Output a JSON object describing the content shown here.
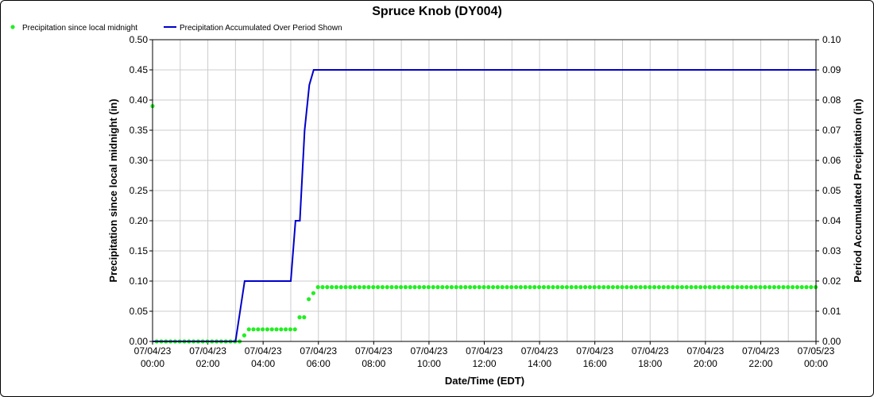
{
  "chart_data": {
    "type": "line",
    "title": "Spruce Knob (DY004)",
    "xlabel": "Date/Time (EDT)",
    "ylabel_left": "Precipitation since local midnight (in)",
    "ylabel_right": "Period Accumulated Precipitation (in)",
    "ylim_left": [
      0,
      0.5
    ],
    "ylim_right": [
      0,
      0.1
    ],
    "grid": true,
    "legend_position": "top-left",
    "x_range_hours": [
      0,
      24
    ],
    "x_ticks": [
      {
        "date": "07/04/23",
        "time": "00:00"
      },
      {
        "date": "07/04/23",
        "time": "02:00"
      },
      {
        "date": "07/04/23",
        "time": "04:00"
      },
      {
        "date": "07/04/23",
        "time": "06:00"
      },
      {
        "date": "07/04/23",
        "time": "08:00"
      },
      {
        "date": "07/04/23",
        "time": "10:00"
      },
      {
        "date": "07/04/23",
        "time": "12:00"
      },
      {
        "date": "07/04/23",
        "time": "14:00"
      },
      {
        "date": "07/04/23",
        "time": "16:00"
      },
      {
        "date": "07/04/23",
        "time": "18:00"
      },
      {
        "date": "07/04/23",
        "time": "20:00"
      },
      {
        "date": "07/04/23",
        "time": "22:00"
      },
      {
        "date": "07/05/23",
        "time": "00:00"
      }
    ],
    "y_ticks_left": [
      "0.00",
      "0.05",
      "0.10",
      "0.15",
      "0.20",
      "0.25",
      "0.30",
      "0.35",
      "0.40",
      "0.45",
      "0.50"
    ],
    "y_ticks_right": [
      "0.00",
      "0.01",
      "0.02",
      "0.03",
      "0.04",
      "0.05",
      "0.06",
      "0.07",
      "0.08",
      "0.09",
      "0.10"
    ],
    "series": [
      {
        "name": "Precipitation since local midnight",
        "axis": "left",
        "style": "points",
        "color": "#22ee22",
        "points": [
          [
            0.0,
            0.39
          ],
          [
            0.15,
            0.0
          ],
          [
            3.0,
            0.0
          ],
          [
            3.17,
            0.01
          ],
          [
            3.33,
            0.02
          ],
          [
            5.0,
            0.02
          ],
          [
            5.17,
            0.04
          ],
          [
            5.33,
            0.04
          ],
          [
            5.5,
            0.07
          ],
          [
            5.67,
            0.08
          ],
          [
            5.83,
            0.09
          ],
          [
            24.0,
            0.09
          ]
        ],
        "interval_hours": 0.1667
      },
      {
        "name": "Precipitation Accumulated Over Period Shown",
        "axis": "right",
        "style": "line",
        "color": "#0000cc",
        "points": [
          [
            0.0,
            0.0
          ],
          [
            3.0,
            0.0
          ],
          [
            3.33,
            0.02
          ],
          [
            5.0,
            0.02
          ],
          [
            5.17,
            0.04
          ],
          [
            5.33,
            0.04
          ],
          [
            5.5,
            0.07
          ],
          [
            5.67,
            0.085
          ],
          [
            5.83,
            0.09
          ],
          [
            24.0,
            0.09
          ]
        ]
      }
    ]
  }
}
